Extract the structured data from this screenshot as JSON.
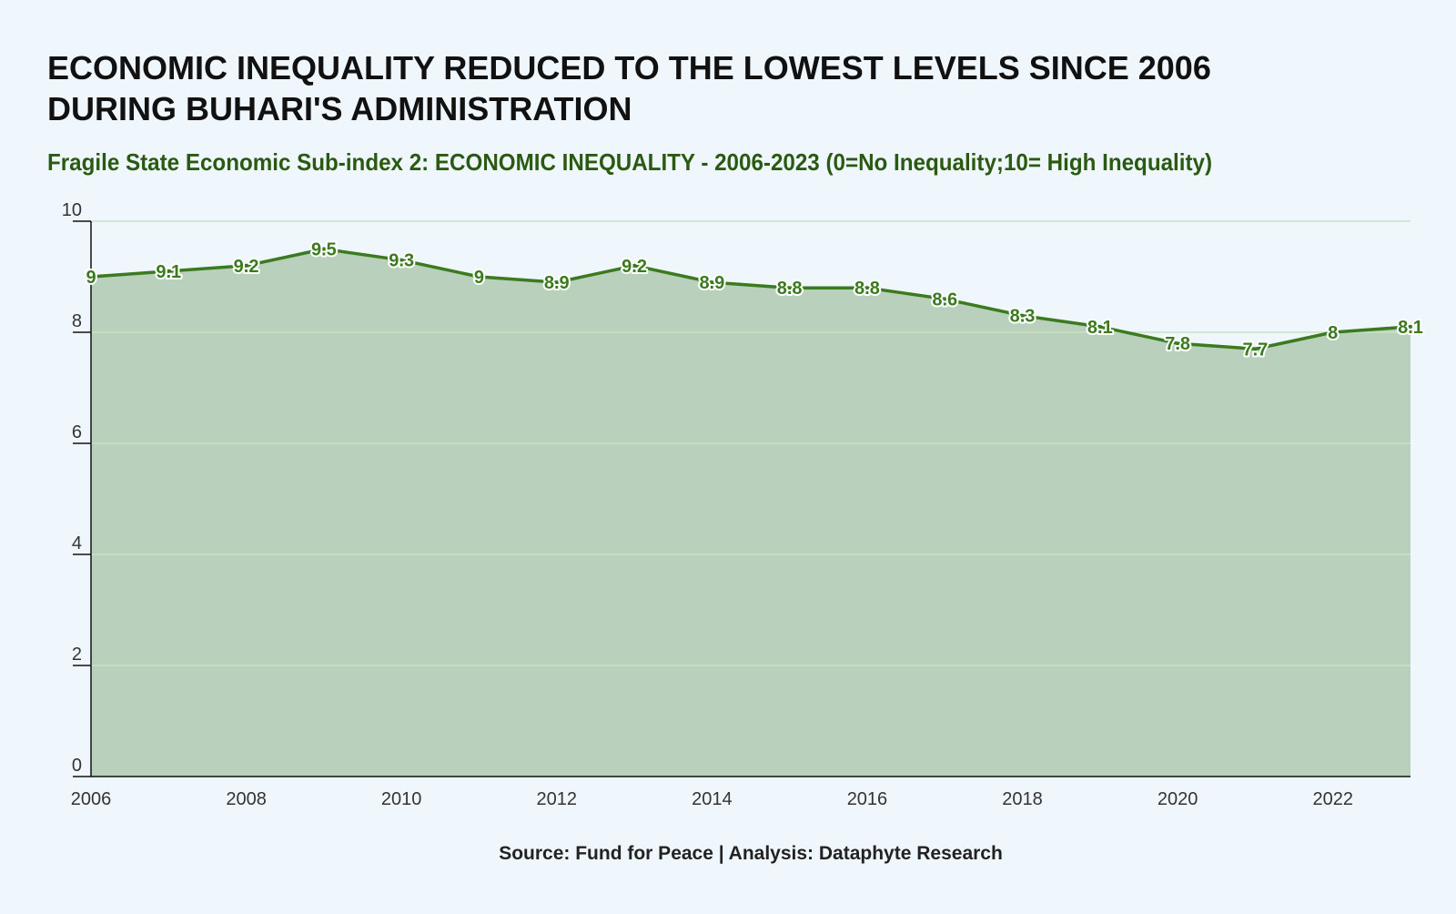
{
  "header": {
    "title_line1": "ECONOMIC INEQUALITY REDUCED TO THE LOWEST LEVELS SINCE 2006",
    "title_line2": "DURING BUHARI'S ADMINISTRATION",
    "subtitle": "Fragile State Economic Sub-index 2: ECONOMIC INEQUALITY - 2006-2023 (0=No Inequality;10= High Inequality)"
  },
  "footer": {
    "source": "Source: Fund for Peace | Analysis: Dataphyte Research"
  },
  "colors": {
    "background": "#eff7fd",
    "area_fill": "#b8d0bc",
    "line": "#3b7a1f",
    "label_text": "#3b7a1f",
    "gridline": "#c9e3c1",
    "axis": "#111111"
  },
  "chart_data": {
    "type": "area",
    "x": [
      2006,
      2007,
      2008,
      2009,
      2010,
      2011,
      2012,
      2013,
      2014,
      2015,
      2016,
      2017,
      2018,
      2019,
      2020,
      2021,
      2022,
      2023
    ],
    "series": [
      {
        "values": [
          9,
          9.1,
          9.2,
          9.5,
          9.3,
          9,
          8.9,
          9.2,
          8.9,
          8.8,
          8.8,
          8.6,
          8.3,
          8.1,
          7.8,
          7.7,
          8,
          8.1
        ]
      }
    ],
    "data_labels": [
      "9",
      "9.1",
      "9.2",
      "9.5",
      "9.3",
      "9",
      "8.9",
      "9.2",
      "8.9",
      "8.8",
      "8.8",
      "8.6",
      "8.3",
      "8.1",
      "7.8",
      "7.7",
      "8",
      "8.1"
    ],
    "x_ticks": [
      "2006",
      "2008",
      "2010",
      "2012",
      "2014",
      "2016",
      "2018",
      "2020",
      "2022"
    ],
    "y_ticks": [
      "0",
      "2",
      "4",
      "6",
      "8",
      "10"
    ],
    "xlim": [
      2006,
      2023
    ],
    "ylim": [
      0,
      10
    ],
    "grid": "horizontal",
    "legend": "none"
  }
}
